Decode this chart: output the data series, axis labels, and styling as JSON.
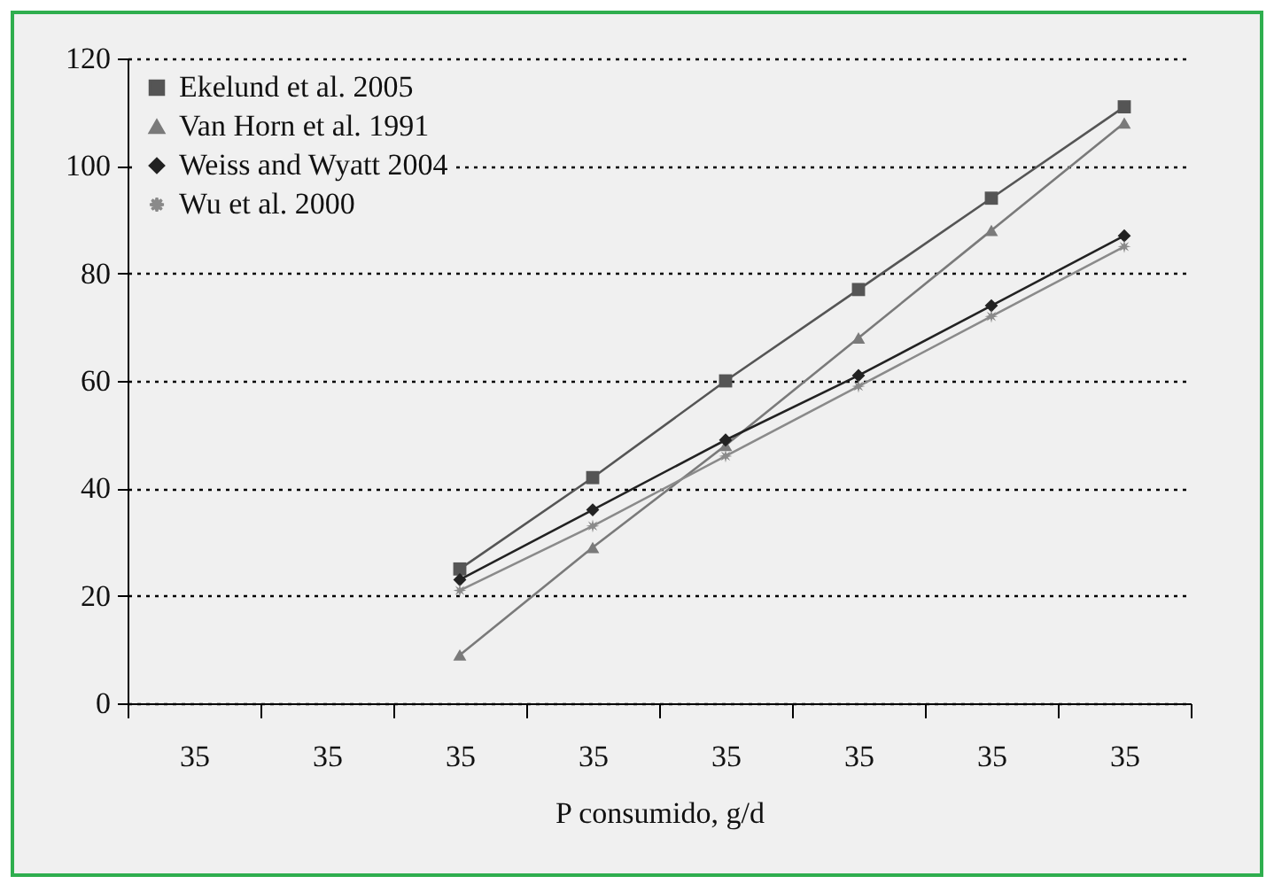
{
  "chart_data": {
    "type": "line",
    "xlabel": "P consumido, g/d",
    "categories": [
      "35",
      "35",
      "35",
      "35",
      "35",
      "35",
      "35",
      "35"
    ],
    "ylim": [
      0,
      120
    ],
    "yticks": [
      0,
      20,
      40,
      60,
      80,
      100,
      120
    ],
    "grid": "y",
    "legend": "top left",
    "line_style": "solid",
    "series": [
      {
        "name": "Ekelund et al. 2005",
        "color": "#555555",
        "marker": "square",
        "values": [
          null,
          null,
          25,
          42,
          60,
          77,
          94,
          111
        ]
      },
      {
        "name": "Van Horn et al. 1991",
        "color": "#7a7a7a",
        "marker": "triangle",
        "values": [
          null,
          null,
          9,
          29,
          48,
          68,
          88,
          108
        ]
      },
      {
        "name": "Weiss and Wyatt 2004",
        "color": "#222222",
        "marker": "diamond",
        "values": [
          null,
          null,
          23,
          36,
          49,
          61,
          74,
          87
        ]
      },
      {
        "name": "Wu et al. 2000",
        "color": "#8a8a8a",
        "marker": "star",
        "values": [
          null,
          null,
          21,
          33,
          46,
          59,
          72,
          85
        ]
      }
    ]
  }
}
